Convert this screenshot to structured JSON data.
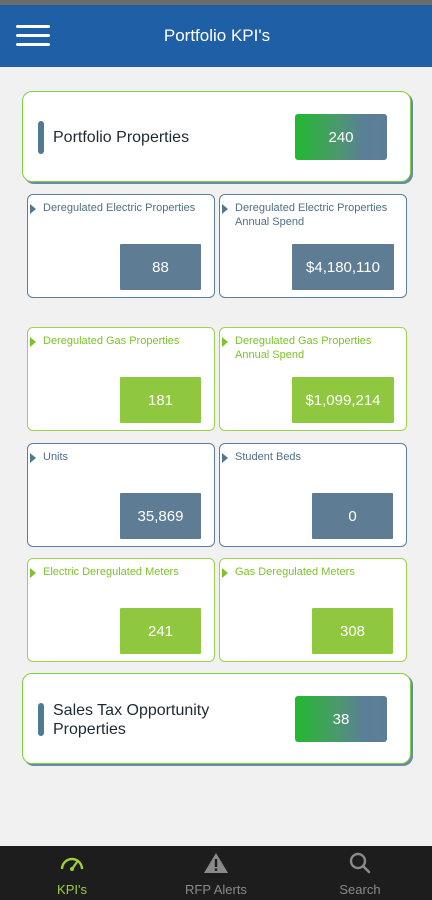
{
  "header": {
    "title": "Portfolio KPI's",
    "menu_icon": "hamburger-menu-icon"
  },
  "portfolio_properties": {
    "label": "Portfolio Properties",
    "value": "240"
  },
  "kpis": {
    "dereg_electric_props": {
      "label": "Deregulated Electric Properties",
      "value": "88"
    },
    "dereg_electric_spend": {
      "label": "Deregulated Electric Properties Annual Spend",
      "value": "$4,180,110"
    },
    "dereg_gas_props": {
      "label": "Deregulated Gas Properties",
      "value": "181"
    },
    "dereg_gas_spend": {
      "label": "Deregulated Gas Properties Annual Spend",
      "value": "$1,099,214"
    },
    "units": {
      "label": "Units",
      "value": "35,869"
    },
    "student_beds": {
      "label": "Student Beds",
      "value": "0"
    },
    "electric_meters": {
      "label": "Electric Deregulated Meters",
      "value": "241"
    },
    "gas_meters": {
      "label": "Gas Deregulated Meters",
      "value": "308"
    }
  },
  "sales_tax": {
    "label": "Sales Tax Opportunity Properties",
    "value": "38"
  },
  "bottom_nav": {
    "items": [
      {
        "label": "KPI's",
        "icon": "gauge-icon",
        "active": true
      },
      {
        "label": "RFP Alerts",
        "icon": "warning-icon",
        "active": false
      },
      {
        "label": "Search",
        "icon": "search-icon",
        "active": false
      }
    ]
  },
  "colors": {
    "header_blue": "#1f5fa6",
    "slate_blue": "#5e7d95",
    "green": "#8fc73e",
    "active_nav": "#9ad03a",
    "nav_bg": "#1d1d1d"
  }
}
